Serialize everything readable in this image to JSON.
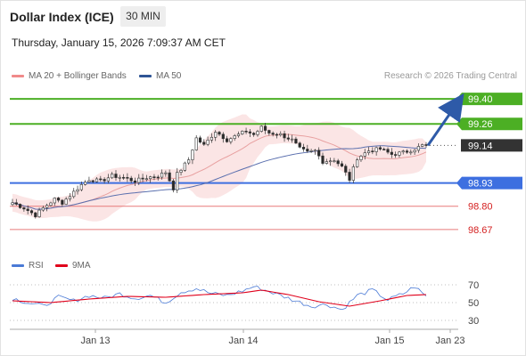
{
  "header": {
    "title": "Dollar Index (ICE)",
    "timeframe": "30 MIN",
    "datetime": "Thursday, January 15, 2026 7:09:37 AM CET"
  },
  "legend": {
    "ma20_bb": "MA 20 + Bollinger Bands",
    "ma50": "MA 50",
    "rsi": "RSI",
    "rsi_ma": "9MA"
  },
  "credit": "Research © 2026 Trading Central",
  "colors": {
    "resistance": "#4caf24",
    "support": "#3d6fe0",
    "weak_support": "#e87a7a",
    "current": "#333333",
    "arrow": "#2e5aa8",
    "band_fill": "#fbe2e2",
    "ma20": "#e8a0a0",
    "ma50": "#5a6fae",
    "rsi": "#4a7ad6",
    "rsi_ma": "#e0001b"
  },
  "chart_data": [
    {
      "type": "candlestick",
      "title": "Dollar Index (ICE)",
      "x_tick_labels": [
        "Jan 13",
        "Jan 14",
        "Jan 15",
        "Jan 23"
      ],
      "ylim": [
        98.55,
        99.48
      ],
      "levels": [
        {
          "value": 99.4,
          "label": "99.40",
          "kind": "resistance"
        },
        {
          "value": 99.26,
          "label": "99.26",
          "kind": "resistance"
        },
        {
          "value": 99.14,
          "label": "99.14",
          "kind": "current"
        },
        {
          "value": 98.93,
          "label": "98.93",
          "kind": "support"
        },
        {
          "value": 98.8,
          "label": "98.80",
          "kind": "weak_support"
        },
        {
          "value": 98.67,
          "label": "98.67",
          "kind": "weak_support"
        }
      ],
      "close_anchors": [
        [
          0,
          98.82
        ],
        [
          3,
          98.79
        ],
        [
          6,
          98.75
        ],
        [
          8,
          98.79
        ],
        [
          11,
          98.84
        ],
        [
          13,
          98.82
        ],
        [
          15,
          98.86
        ],
        [
          18,
          98.92
        ],
        [
          20,
          98.95
        ],
        [
          23,
          98.94
        ],
        [
          26,
          98.97
        ],
        [
          29,
          98.96
        ],
        [
          32,
          98.94
        ],
        [
          35,
          98.96
        ],
        [
          38,
          98.97
        ],
        [
          40,
          98.99
        ],
        [
          42,
          98.9
        ],
        [
          43,
          98.98
        ],
        [
          46,
          99.06
        ],
        [
          48,
          99.18
        ],
        [
          50,
          99.14
        ],
        [
          53,
          99.22
        ],
        [
          56,
          99.17
        ],
        [
          59,
          99.2
        ],
        [
          61,
          99.22
        ],
        [
          63,
          99.2
        ],
        [
          65,
          99.24
        ],
        [
          67,
          99.21
        ],
        [
          70,
          99.2
        ],
        [
          73,
          99.17
        ],
        [
          75,
          99.12
        ],
        [
          77,
          99.1
        ],
        [
          79,
          99.11
        ],
        [
          81,
          99.05
        ],
        [
          84,
          99.06
        ],
        [
          86,
          99.02
        ],
        [
          88,
          98.95
        ],
        [
          90,
          99.07
        ],
        [
          93,
          99.11
        ],
        [
          96,
          99.12
        ],
        [
          99,
          99.09
        ],
        [
          102,
          99.1
        ],
        [
          105,
          99.12
        ],
        [
          107,
          99.14
        ],
        [
          108,
          99.14
        ]
      ],
      "projection": {
        "from": 99.14,
        "to": 99.4
      }
    },
    {
      "type": "line",
      "title": "RSI",
      "yticks": [
        70,
        50,
        30
      ],
      "ylim": [
        25,
        75
      ],
      "series": [
        {
          "name": "RSI",
          "anchors": [
            [
              0,
              55
            ],
            [
              4,
              50
            ],
            [
              8,
              46
            ],
            [
              12,
              56
            ],
            [
              16,
              52
            ],
            [
              20,
              58
            ],
            [
              24,
              55
            ],
            [
              28,
              60
            ],
            [
              32,
              55
            ],
            [
              36,
              58
            ],
            [
              40,
              50
            ],
            [
              44,
              62
            ],
            [
              48,
              66
            ],
            [
              52,
              60
            ],
            [
              56,
              58
            ],
            [
              60,
              63
            ],
            [
              63,
              68
            ],
            [
              66,
              64
            ],
            [
              70,
              58
            ],
            [
              74,
              52
            ],
            [
              78,
              46
            ],
            [
              82,
              48
            ],
            [
              86,
              42
            ],
            [
              90,
              58
            ],
            [
              94,
              64
            ],
            [
              98,
              53
            ],
            [
              102,
              60
            ],
            [
              105,
              68
            ],
            [
              108,
              57
            ]
          ]
        },
        {
          "name": "9MA",
          "anchors": [
            [
              0,
              52
            ],
            [
              10,
              50
            ],
            [
              20,
              54
            ],
            [
              30,
              57
            ],
            [
              40,
              56
            ],
            [
              50,
              59
            ],
            [
              60,
              61
            ],
            [
              65,
              64
            ],
            [
              72,
              59
            ],
            [
              80,
              51
            ],
            [
              88,
              46
            ],
            [
              96,
              52
            ],
            [
              103,
              58
            ],
            [
              108,
              59
            ]
          ]
        }
      ]
    }
  ]
}
